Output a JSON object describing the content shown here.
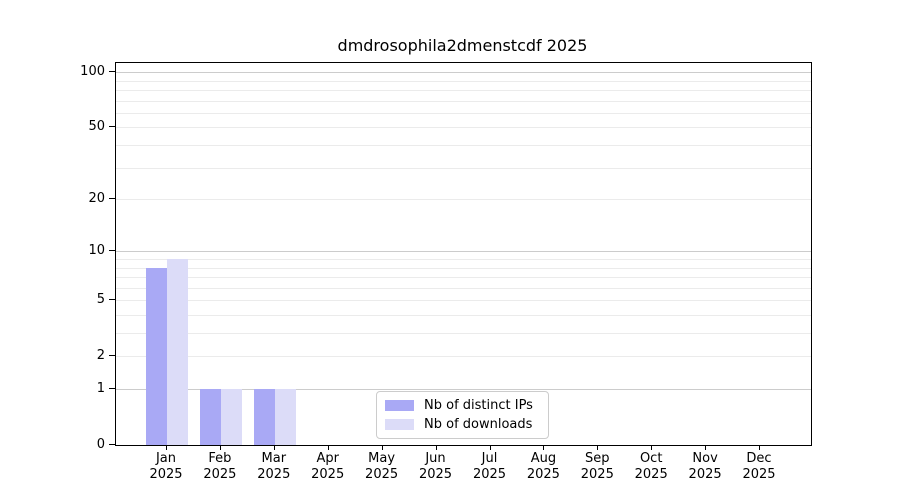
{
  "title": "dmdrosophila2dmenstcdf 2025",
  "chart_data": {
    "type": "bar",
    "title": "dmdrosophila2dmenstcdf 2025",
    "categories": [
      "Jan 2025",
      "Feb 2025",
      "Mar 2025",
      "Apr 2025",
      "May 2025",
      "Jun 2025",
      "Jul 2025",
      "Aug 2025",
      "Sep 2025",
      "Oct 2025",
      "Nov 2025",
      "Dec 2025"
    ],
    "series": [
      {
        "name": "Nb of distinct IPs",
        "color": "#a9a9f5",
        "values": [
          8,
          1,
          1,
          0,
          0,
          0,
          0,
          0,
          0,
          0,
          0,
          0
        ]
      },
      {
        "name": "Nb of downloads",
        "color": "#dcdcf8",
        "values": [
          9,
          1,
          1,
          0,
          0,
          0,
          0,
          0,
          0,
          0,
          0,
          0
        ]
      }
    ],
    "xlabel": "",
    "ylabel": "",
    "yscale": "log1p",
    "ytick_values": [
      0,
      1,
      2,
      5,
      10,
      20,
      50,
      100
    ],
    "ylim": [
      0,
      112
    ],
    "grid": "horizontal",
    "legend_position": "lower-center-inside"
  },
  "colors": {
    "major_grid": "#cccccc",
    "minor_grid": "#ebebeb",
    "spine": "#000000",
    "background": "#ffffff"
  }
}
